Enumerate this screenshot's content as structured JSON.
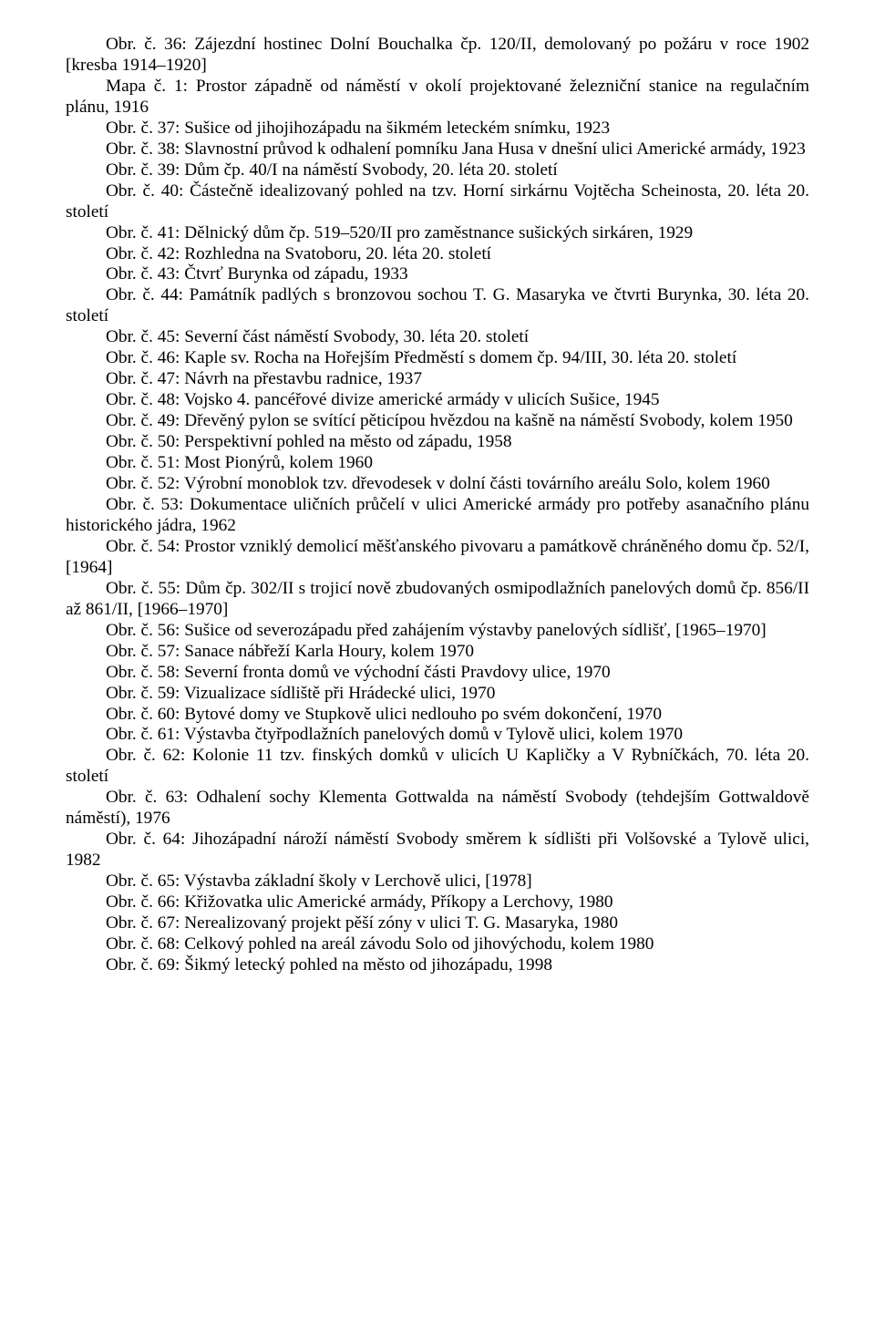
{
  "entries": [
    "Obr. č. 36: Zájezdní hostinec Dolní Bouchalka čp. 120/II, demolovaný po požáru v roce 1902 [kresba 1914–1920]",
    "Mapa č. 1: Prostor západně od náměstí v okolí projektované železniční stanice na regulačním plánu, 1916",
    "Obr. č. 37: Sušice od jihojihozápadu na šikmém leteckém snímku, 1923",
    "Obr. č. 38: Slavnostní průvod k odhalení pomníku Jana Husa v dnešní ulici Americké armády, 1923",
    "Obr. č. 39: Dům čp. 40/I na náměstí Svobody, 20. léta 20. století",
    "Obr. č. 40: Částečně idealizovaný pohled na tzv. Horní sirkárnu Vojtěcha Scheinosta, 20. léta 20. století",
    "Obr. č. 41: Dělnický dům čp. 519–520/II pro zaměstnance sušických sirkáren, 1929",
    "Obr. č. 42: Rozhledna na Svatoboru, 20. léta 20. století",
    "Obr. č. 43: Čtvrť Burynka od západu, 1933",
    "Obr. č. 44: Památník padlých s bronzovou sochou T. G. Masaryka ve čtvrti Burynka, 30. léta 20. století",
    "Obr. č. 45: Severní část náměstí Svobody, 30. léta 20. století",
    "Obr. č. 46: Kaple sv. Rocha na Hořejším Předměstí s domem čp. 94/III, 30. léta 20. století",
    "Obr. č. 47: Návrh na přestavbu radnice, 1937",
    "Obr. č. 48: Vojsko 4. pancéřové divize americké armády v ulicích Sušice, 1945",
    "Obr. č. 49: Dřevěný pylon se svítící pěticípou hvězdou na kašně na náměstí Svobody, kolem 1950",
    "Obr. č. 50: Perspektivní pohled na město od západu, 1958",
    "Obr. č. 51: Most Pionýrů, kolem 1960",
    "Obr. č. 52: Výrobní monoblok tzv. dřevodesek v dolní části továrního areálu Solo, kolem 1960",
    "Obr. č. 53: Dokumentace uličních průčelí v ulici Americké armády pro potřeby asanačního plánu historického jádra, 1962",
    "Obr. č. 54: Prostor vzniklý demolicí měšťanského pivovaru a památkově chráněného domu čp. 52/I, [1964]",
    "Obr. č. 55: Dům čp. 302/II s trojicí nově zbudovaných osmipodlažních panelových domů čp. 856/II až 861/II, [1966–1970]",
    "Obr. č. 56: Sušice od severozápadu před zahájením výstavby panelových sídlišť, [1965–1970]",
    "Obr. č. 57: Sanace nábřeží Karla Houry, kolem 1970",
    "Obr. č. 58: Severní fronta domů ve východní části Pravdovy ulice, 1970",
    "Obr. č. 59: Vizualizace sídliště při Hrádecké ulici, 1970",
    "Obr. č. 60: Bytové domy ve Stupkově ulici nedlouho po svém dokončení, 1970",
    "Obr. č. 61: Výstavba čtyřpodlažních panelových domů v Tylově ulici, kolem 1970",
    "Obr. č. 62: Kolonie 11 tzv. finských domků v ulicích U Kapličky a V Rybníčkách, 70. léta 20. století",
    "Obr. č. 63: Odhalení sochy Klementa Gottwalda na náměstí Svobody (tehdejším Gottwaldově náměstí), 1976",
    "Obr. č. 64: Jihozápadní nároží náměstí Svobody směrem k sídlišti při Volšovské a Tylově ulici, 1982",
    "Obr. č. 65: Výstavba základní školy v Lerchově ulici, [1978]",
    "Obr. č. 66: Křižovatka ulic Americké armády, Příkopy a Lerchovy, 1980",
    "Obr. č. 67: Nerealizovaný projekt pěší zóny v ulici T. G. Masaryka, 1980",
    "Obr. č. 68: Celkový pohled na areál závodu Solo od jihovýchodu, kolem 1980",
    "Obr. č. 69: Šikmý letecký pohled na město od jihozápadu, 1998"
  ]
}
